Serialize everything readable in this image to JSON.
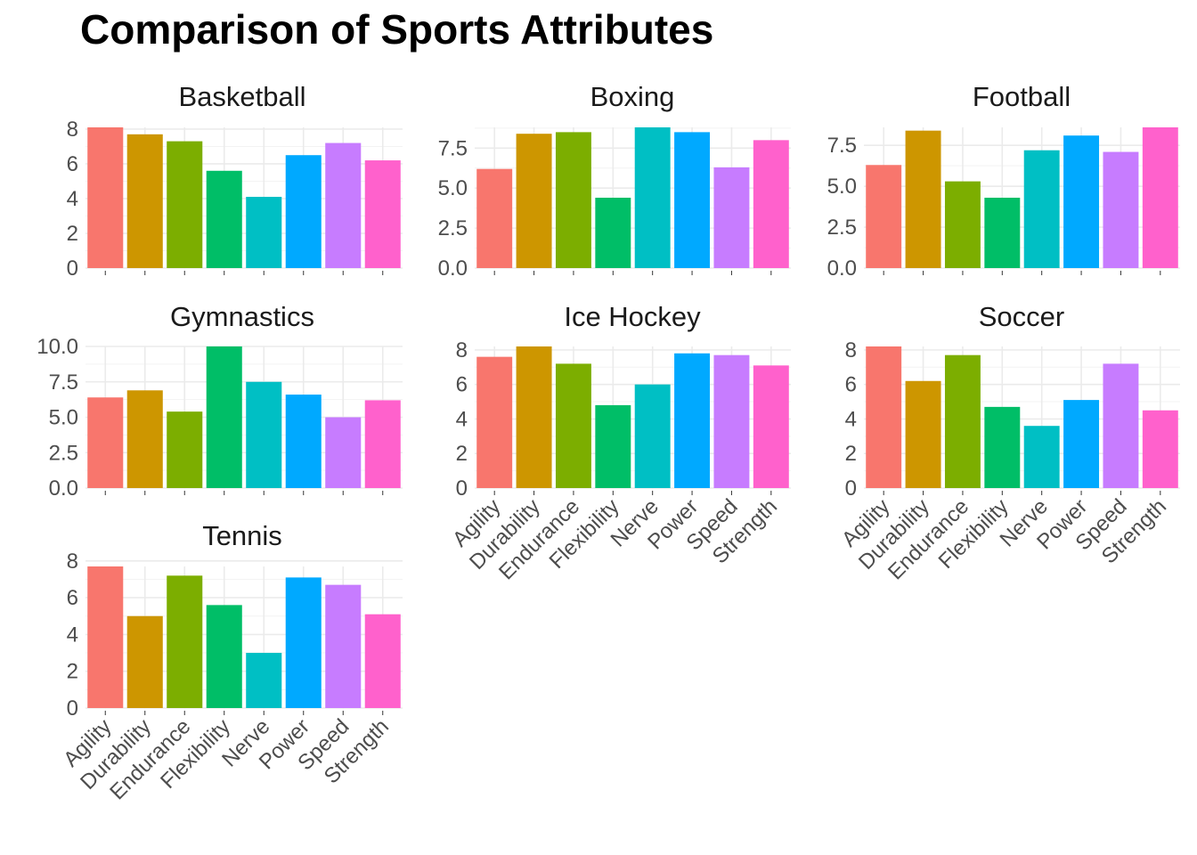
{
  "chart_data": {
    "type": "bar",
    "title": "Comparison of Sports Attributes",
    "categories": [
      "Agility",
      "Durability",
      "Endurance",
      "Flexibility",
      "Nerve",
      "Power",
      "Speed",
      "Strength"
    ],
    "colors": [
      "#F8766D",
      "#CD9600",
      "#7CAE00",
      "#00BE67",
      "#00BFC4",
      "#00A9FF",
      "#C77CFF",
      "#FF61CC"
    ],
    "legend": "none",
    "grid": true,
    "facets": [
      {
        "name": "Basketball",
        "values": [
          8.1,
          7.7,
          7.3,
          5.6,
          4.1,
          6.5,
          7.2,
          6.2
        ],
        "ylim": [
          0,
          8.1
        ],
        "ticks": [
          0,
          2,
          4,
          6,
          8
        ],
        "tick_labels": [
          "0",
          "2",
          "4",
          "6",
          "8"
        ]
      },
      {
        "name": "Boxing",
        "values": [
          6.2,
          8.4,
          8.5,
          4.4,
          8.8,
          8.5,
          6.3,
          8.0
        ],
        "ylim": [
          0,
          8.8
        ],
        "ticks": [
          0,
          2.5,
          5,
          7.5
        ],
        "tick_labels": [
          "0.0",
          "2.5",
          "5.0",
          "7.5"
        ]
      },
      {
        "name": "Football",
        "values": [
          6.3,
          8.4,
          5.3,
          4.3,
          7.2,
          8.1,
          7.1,
          8.6
        ],
        "ylim": [
          0,
          8.6
        ],
        "ticks": [
          0,
          2.5,
          5,
          7.5
        ],
        "tick_labels": [
          "0.0",
          "2.5",
          "5.0",
          "7.5"
        ]
      },
      {
        "name": "Gymnastics",
        "values": [
          6.4,
          6.9,
          5.4,
          10.0,
          7.5,
          6.6,
          5.0,
          6.2
        ],
        "ylim": [
          0,
          10.0
        ],
        "ticks": [
          0,
          2.5,
          5,
          7.5,
          10
        ],
        "tick_labels": [
          "0.0",
          "2.5",
          "5.0",
          "7.5",
          "10.0"
        ]
      },
      {
        "name": "Ice Hockey",
        "values": [
          7.6,
          8.2,
          7.2,
          4.8,
          6.0,
          7.8,
          7.7,
          7.1
        ],
        "ylim": [
          0,
          8.2
        ],
        "ticks": [
          0,
          2,
          4,
          6,
          8
        ],
        "tick_labels": [
          "0",
          "2",
          "4",
          "6",
          "8"
        ]
      },
      {
        "name": "Soccer",
        "values": [
          8.2,
          6.2,
          7.7,
          4.7,
          3.6,
          5.1,
          7.2,
          4.5
        ],
        "ylim": [
          0,
          8.2
        ],
        "ticks": [
          0,
          2,
          4,
          6,
          8
        ],
        "tick_labels": [
          "0",
          "2",
          "4",
          "6",
          "8"
        ]
      },
      {
        "name": "Tennis",
        "values": [
          7.7,
          5.0,
          7.2,
          5.6,
          3.0,
          7.1,
          6.7,
          5.1
        ],
        "ylim": [
          0,
          7.7
        ],
        "ticks": [
          0,
          2,
          4,
          6,
          8
        ],
        "tick_labels": [
          "0",
          "2",
          "4",
          "6",
          "8"
        ]
      }
    ]
  }
}
